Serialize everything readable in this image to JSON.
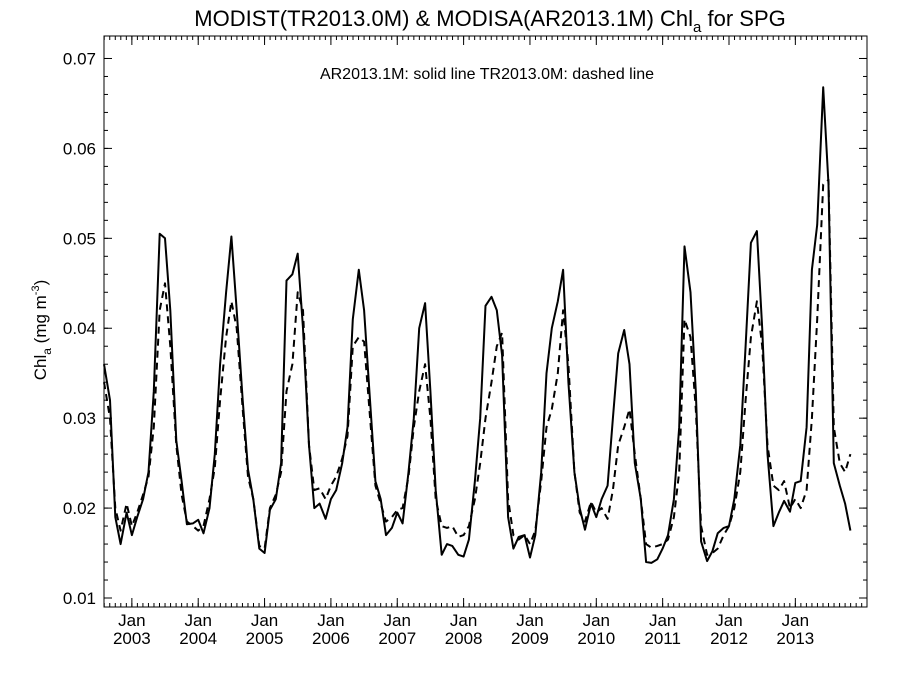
{
  "chart_data": {
    "type": "line",
    "title": "MODIST(TR2013.0M) & MODISA(AR2013.1M)  Chl",
    "title_sub": "a",
    "title_tail": " for SPG",
    "annotation": "AR2013.1M: solid line   TR2013.0M: dashed line",
    "ylabel": "Chl",
    "ylabel_sub": "a",
    "ylabel_units": " (mg m",
    "ylabel_sup": "-3",
    "ylabel_close": ")",
    "xlabel": "",
    "ylim": [
      0.009,
      0.0725
    ],
    "xlim": [
      2002.58,
      2014.08
    ],
    "yticks": [
      0.01,
      0.02,
      0.03,
      0.04,
      0.05,
      0.06,
      0.07
    ],
    "ytick_labels": [
      "0.01",
      "0.02",
      "0.03",
      "0.04",
      "0.05",
      "0.06",
      "0.07"
    ],
    "xticks": [
      {
        "month": "Jan",
        "year": "2003",
        "x": 2003.0
      },
      {
        "month": "Jan",
        "year": "2004",
        "x": 2004.0
      },
      {
        "month": "Jan",
        "year": "2005",
        "x": 2005.0
      },
      {
        "month": "Jan",
        "year": "2006",
        "x": 2006.0
      },
      {
        "month": "Jan",
        "year": "2007",
        "x": 2007.0
      },
      {
        "month": "Jan",
        "year": "2008",
        "x": 2008.0
      },
      {
        "month": "Jan",
        "year": "2009",
        "x": 2009.0
      },
      {
        "month": "Jan",
        "year": "2010",
        "x": 2010.0
      },
      {
        "month": "Jan",
        "year": "2011",
        "x": 2011.0
      },
      {
        "month": "Jan",
        "year": "2012",
        "x": 2012.0
      },
      {
        "month": "Jan",
        "year": "2013",
        "x": 2013.0
      }
    ],
    "grid": false,
    "series": [
      {
        "name": "AR2013.1M",
        "style": "solid",
        "color": "#000000",
        "points": [
          [
            2002.58,
            0.036
          ],
          [
            2002.67,
            0.032
          ],
          [
            2002.75,
            0.019
          ],
          [
            2002.83,
            0.016
          ],
          [
            2002.92,
            0.0195
          ],
          [
            2003.0,
            0.017
          ],
          [
            2003.08,
            0.019
          ],
          [
            2003.17,
            0.021
          ],
          [
            2003.25,
            0.024
          ],
          [
            2003.33,
            0.033
          ],
          [
            2003.42,
            0.0505
          ],
          [
            2003.5,
            0.05
          ],
          [
            2003.58,
            0.042
          ],
          [
            2003.67,
            0.0275
          ],
          [
            2003.75,
            0.023
          ],
          [
            2003.83,
            0.0182
          ],
          [
            2003.92,
            0.0183
          ],
          [
            2004.0,
            0.0187
          ],
          [
            2004.08,
            0.0172
          ],
          [
            2004.17,
            0.02
          ],
          [
            2004.25,
            0.026
          ],
          [
            2004.33,
            0.036
          ],
          [
            2004.42,
            0.044
          ],
          [
            2004.5,
            0.0502
          ],
          [
            2004.58,
            0.042
          ],
          [
            2004.67,
            0.032
          ],
          [
            2004.75,
            0.0243
          ],
          [
            2004.83,
            0.021
          ],
          [
            2004.92,
            0.0155
          ],
          [
            2005.0,
            0.015
          ],
          [
            2005.08,
            0.0198
          ],
          [
            2005.17,
            0.021
          ],
          [
            2005.25,
            0.025
          ],
          [
            2005.33,
            0.0453
          ],
          [
            2005.42,
            0.046
          ],
          [
            2005.5,
            0.0483
          ],
          [
            2005.58,
            0.04
          ],
          [
            2005.67,
            0.027
          ],
          [
            2005.75,
            0.02
          ],
          [
            2005.83,
            0.0205
          ],
          [
            2005.92,
            0.0188
          ],
          [
            2006.0,
            0.021
          ],
          [
            2006.08,
            0.022
          ],
          [
            2006.17,
            0.025
          ],
          [
            2006.25,
            0.029
          ],
          [
            2006.33,
            0.041
          ],
          [
            2006.42,
            0.0465
          ],
          [
            2006.5,
            0.042
          ],
          [
            2006.58,
            0.033
          ],
          [
            2006.67,
            0.023
          ],
          [
            2006.75,
            0.021
          ],
          [
            2006.83,
            0.017
          ],
          [
            2006.92,
            0.0178
          ],
          [
            2007.0,
            0.0195
          ],
          [
            2007.08,
            0.0183
          ],
          [
            2007.17,
            0.024
          ],
          [
            2007.25,
            0.03
          ],
          [
            2007.33,
            0.04
          ],
          [
            2007.42,
            0.0428
          ],
          [
            2007.5,
            0.033
          ],
          [
            2007.58,
            0.022
          ],
          [
            2007.67,
            0.0148
          ],
          [
            2007.75,
            0.016
          ],
          [
            2007.83,
            0.0158
          ],
          [
            2007.92,
            0.0148
          ],
          [
            2008.0,
            0.0146
          ],
          [
            2008.08,
            0.0165
          ],
          [
            2008.17,
            0.023
          ],
          [
            2008.25,
            0.03
          ],
          [
            2008.33,
            0.0425
          ],
          [
            2008.42,
            0.0435
          ],
          [
            2008.5,
            0.042
          ],
          [
            2008.58,
            0.037
          ],
          [
            2008.67,
            0.019
          ],
          [
            2008.75,
            0.0155
          ],
          [
            2008.83,
            0.0168
          ],
          [
            2008.92,
            0.017
          ],
          [
            2009.0,
            0.0145
          ],
          [
            2009.08,
            0.017
          ],
          [
            2009.17,
            0.024
          ],
          [
            2009.25,
            0.035
          ],
          [
            2009.33,
            0.04
          ],
          [
            2009.42,
            0.043
          ],
          [
            2009.5,
            0.0465
          ],
          [
            2009.58,
            0.034
          ],
          [
            2009.67,
            0.024
          ],
          [
            2009.75,
            0.02
          ],
          [
            2009.83,
            0.0176
          ],
          [
            2009.92,
            0.0205
          ],
          [
            2010.0,
            0.019
          ],
          [
            2010.08,
            0.021
          ],
          [
            2010.17,
            0.0225
          ],
          [
            2010.25,
            0.03
          ],
          [
            2010.33,
            0.0372
          ],
          [
            2010.42,
            0.0398
          ],
          [
            2010.5,
            0.036
          ],
          [
            2010.58,
            0.025
          ],
          [
            2010.67,
            0.021
          ],
          [
            2010.75,
            0.014
          ],
          [
            2010.83,
            0.0139
          ],
          [
            2010.92,
            0.0143
          ],
          [
            2011.0,
            0.0155
          ],
          [
            2011.08,
            0.017
          ],
          [
            2011.17,
            0.021
          ],
          [
            2011.25,
            0.029
          ],
          [
            2011.33,
            0.0491
          ],
          [
            2011.42,
            0.044
          ],
          [
            2011.5,
            0.033
          ],
          [
            2011.58,
            0.0163
          ],
          [
            2011.67,
            0.0141
          ],
          [
            2011.75,
            0.0152
          ],
          [
            2011.83,
            0.0172
          ],
          [
            2011.92,
            0.0178
          ],
          [
            2012.0,
            0.018
          ],
          [
            2012.08,
            0.021
          ],
          [
            2012.17,
            0.027
          ],
          [
            2012.25,
            0.038
          ],
          [
            2012.33,
            0.0495
          ],
          [
            2012.42,
            0.0508
          ],
          [
            2012.5,
            0.04
          ],
          [
            2012.58,
            0.026
          ],
          [
            2012.67,
            0.018
          ],
          [
            2012.75,
            0.0195
          ],
          [
            2012.83,
            0.0208
          ],
          [
            2012.92,
            0.0196
          ],
          [
            2013.0,
            0.0228
          ],
          [
            2013.08,
            0.023
          ],
          [
            2013.17,
            0.029
          ],
          [
            2013.25,
            0.0465
          ],
          [
            2013.33,
            0.0515
          ],
          [
            2013.42,
            0.0668
          ],
          [
            2013.5,
            0.056
          ],
          [
            2013.58,
            0.025
          ],
          [
            2013.67,
            0.0225
          ],
          [
            2013.75,
            0.0205
          ],
          [
            2013.83,
            0.0175
          ]
        ]
      },
      {
        "name": "TR2013.0M",
        "style": "dashed",
        "color": "#000000",
        "points": [
          [
            2002.58,
            0.034
          ],
          [
            2002.67,
            0.03
          ],
          [
            2002.75,
            0.02
          ],
          [
            2002.83,
            0.0175
          ],
          [
            2002.92,
            0.0205
          ],
          [
            2003.0,
            0.018
          ],
          [
            2003.08,
            0.0195
          ],
          [
            2003.17,
            0.0215
          ],
          [
            2003.25,
            0.0235
          ],
          [
            2003.33,
            0.029
          ],
          [
            2003.42,
            0.042
          ],
          [
            2003.5,
            0.045
          ],
          [
            2003.58,
            0.038
          ],
          [
            2003.67,
            0.027
          ],
          [
            2003.75,
            0.0215
          ],
          [
            2003.83,
            0.0185
          ],
          [
            2003.92,
            0.018
          ],
          [
            2004.0,
            0.0175
          ],
          [
            2004.08,
            0.018
          ],
          [
            2004.17,
            0.021
          ],
          [
            2004.25,
            0.0245
          ],
          [
            2004.33,
            0.032
          ],
          [
            2004.42,
            0.039
          ],
          [
            2004.5,
            0.043
          ],
          [
            2004.58,
            0.04
          ],
          [
            2004.67,
            0.031
          ],
          [
            2004.75,
            0.0235
          ],
          [
            2004.83,
            0.021
          ],
          [
            2004.92,
            0.0158
          ],
          [
            2005.0,
            0.0155
          ],
          [
            2005.08,
            0.02
          ],
          [
            2005.17,
            0.0215
          ],
          [
            2005.25,
            0.024
          ],
          [
            2005.33,
            0.033
          ],
          [
            2005.42,
            0.036
          ],
          [
            2005.5,
            0.044
          ],
          [
            2005.58,
            0.042
          ],
          [
            2005.67,
            0.027
          ],
          [
            2005.75,
            0.022
          ],
          [
            2005.83,
            0.0222
          ],
          [
            2005.92,
            0.021
          ],
          [
            2006.0,
            0.0225
          ],
          [
            2006.08,
            0.0235
          ],
          [
            2006.17,
            0.0255
          ],
          [
            2006.25,
            0.028
          ],
          [
            2006.33,
            0.038
          ],
          [
            2006.42,
            0.039
          ],
          [
            2006.5,
            0.0385
          ],
          [
            2006.58,
            0.031
          ],
          [
            2006.67,
            0.0225
          ],
          [
            2006.75,
            0.0205
          ],
          [
            2006.83,
            0.0185
          ],
          [
            2006.92,
            0.019
          ],
          [
            2007.0,
            0.0198
          ],
          [
            2007.08,
            0.02
          ],
          [
            2007.17,
            0.0235
          ],
          [
            2007.25,
            0.029
          ],
          [
            2007.33,
            0.033
          ],
          [
            2007.42,
            0.036
          ],
          [
            2007.5,
            0.03
          ],
          [
            2007.58,
            0.021
          ],
          [
            2007.67,
            0.018
          ],
          [
            2007.75,
            0.0178
          ],
          [
            2007.83,
            0.018
          ],
          [
            2007.92,
            0.0168
          ],
          [
            2008.0,
            0.017
          ],
          [
            2008.08,
            0.018
          ],
          [
            2008.17,
            0.021
          ],
          [
            2008.25,
            0.025
          ],
          [
            2008.33,
            0.03
          ],
          [
            2008.42,
            0.034
          ],
          [
            2008.5,
            0.038
          ],
          [
            2008.58,
            0.0395
          ],
          [
            2008.67,
            0.021
          ],
          [
            2008.75,
            0.017
          ],
          [
            2008.83,
            0.0165
          ],
          [
            2008.92,
            0.017
          ],
          [
            2009.0,
            0.016
          ],
          [
            2009.08,
            0.0175
          ],
          [
            2009.17,
            0.023
          ],
          [
            2009.25,
            0.029
          ],
          [
            2009.33,
            0.031
          ],
          [
            2009.42,
            0.035
          ],
          [
            2009.5,
            0.042
          ],
          [
            2009.58,
            0.036
          ],
          [
            2009.67,
            0.024
          ],
          [
            2009.75,
            0.0195
          ],
          [
            2009.83,
            0.0185
          ],
          [
            2009.92,
            0.0207
          ],
          [
            2010.0,
            0.0195
          ],
          [
            2010.08,
            0.02
          ],
          [
            2010.17,
            0.0188
          ],
          [
            2010.25,
            0.022
          ],
          [
            2010.33,
            0.027
          ],
          [
            2010.42,
            0.029
          ],
          [
            2010.5,
            0.031
          ],
          [
            2010.58,
            0.026
          ],
          [
            2010.67,
            0.021
          ],
          [
            2010.75,
            0.016
          ],
          [
            2010.83,
            0.0156
          ],
          [
            2010.92,
            0.0158
          ],
          [
            2011.0,
            0.016
          ],
          [
            2011.08,
            0.0165
          ],
          [
            2011.17,
            0.019
          ],
          [
            2011.25,
            0.024
          ],
          [
            2011.33,
            0.041
          ],
          [
            2011.42,
            0.039
          ],
          [
            2011.5,
            0.031
          ],
          [
            2011.58,
            0.018
          ],
          [
            2011.67,
            0.0148
          ],
          [
            2011.75,
            0.015
          ],
          [
            2011.83,
            0.0155
          ],
          [
            2011.92,
            0.017
          ],
          [
            2012.0,
            0.018
          ],
          [
            2012.08,
            0.02
          ],
          [
            2012.17,
            0.024
          ],
          [
            2012.25,
            0.032
          ],
          [
            2012.33,
            0.039
          ],
          [
            2012.42,
            0.043
          ],
          [
            2012.5,
            0.038
          ],
          [
            2012.58,
            0.027
          ],
          [
            2012.67,
            0.0225
          ],
          [
            2012.75,
            0.022
          ],
          [
            2012.83,
            0.023
          ],
          [
            2012.92,
            0.02
          ],
          [
            2013.0,
            0.021
          ],
          [
            2013.08,
            0.02
          ],
          [
            2013.17,
            0.022
          ],
          [
            2013.25,
            0.03
          ],
          [
            2013.33,
            0.041
          ],
          [
            2013.42,
            0.056
          ],
          [
            2013.5,
            0.0565
          ],
          [
            2013.58,
            0.029
          ],
          [
            2013.67,
            0.025
          ],
          [
            2013.75,
            0.024
          ],
          [
            2013.83,
            0.026
          ]
        ]
      }
    ]
  }
}
